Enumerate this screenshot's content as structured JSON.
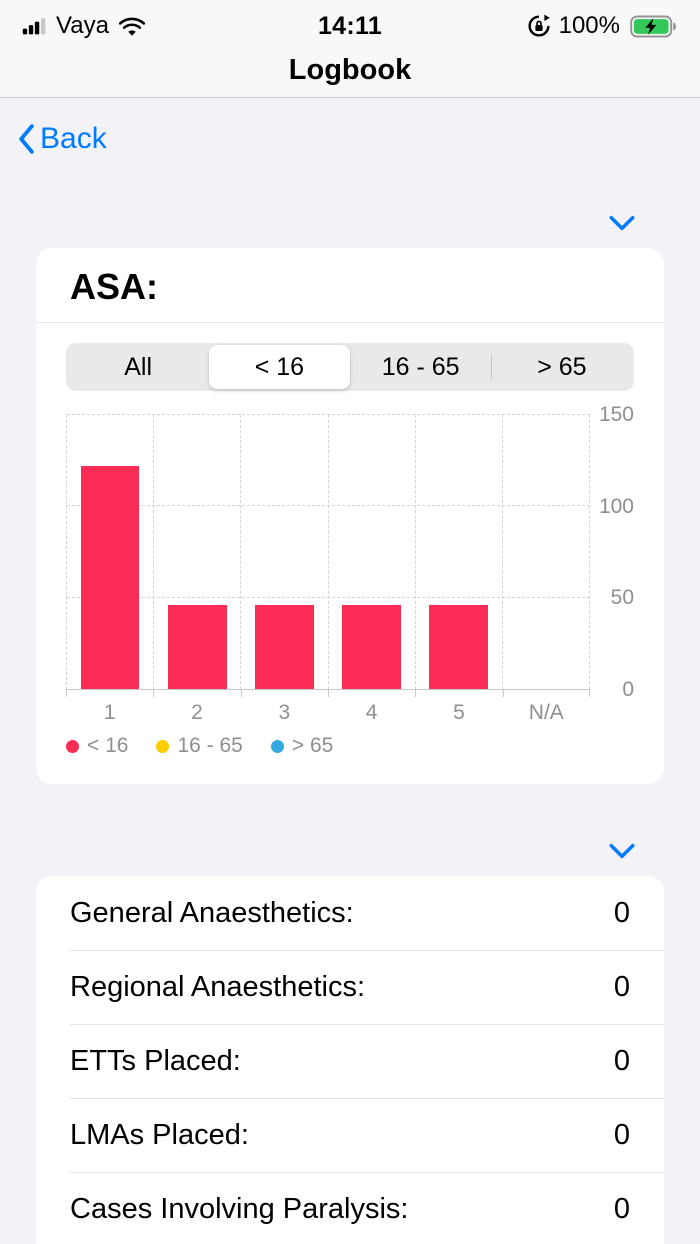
{
  "status_bar": {
    "carrier": "Vaya",
    "time": "14:11",
    "battery_percent": "100%"
  },
  "nav": {
    "title": "Logbook",
    "back_label": "Back"
  },
  "asa_card": {
    "title": "ASA:",
    "segments": [
      {
        "label": "All",
        "selected": false
      },
      {
        "label": "< 16",
        "selected": true
      },
      {
        "label": "16 - 65",
        "selected": false
      },
      {
        "label": "> 65",
        "selected": false
      }
    ]
  },
  "chart_data": {
    "type": "bar",
    "categories": [
      "1",
      "2",
      "3",
      "4",
      "5",
      "N/A"
    ],
    "series": [
      {
        "name": "< 16",
        "color": "#fb2c55",
        "values": [
          122,
          46,
          46,
          46,
          46,
          0
        ]
      }
    ],
    "legend": [
      {
        "label": "< 16",
        "color": "#fb2c55"
      },
      {
        "label": "16 - 65",
        "color": "#ffcc00"
      },
      {
        "label": "> 65",
        "color": "#35a8e0"
      }
    ],
    "xlabel": "",
    "ylabel": "",
    "y_ticks": [
      0,
      50,
      100,
      150
    ],
    "ylim": [
      0,
      150
    ],
    "grid": true,
    "legend_position": "bottom-left"
  },
  "stats_card": {
    "rows": [
      {
        "label": "General Anaesthetics:",
        "value": "0"
      },
      {
        "label": "Regional Anaesthetics:",
        "value": "0"
      },
      {
        "label": "ETTs Placed:",
        "value": "0"
      },
      {
        "label": "LMAs Placed:",
        "value": "0"
      },
      {
        "label": "Cases Involving Paralysis:",
        "value": "0"
      }
    ]
  },
  "colors": {
    "accent_blue": "#007aff",
    "bar_red": "#fb2c55",
    "legend_yellow": "#ffcc00",
    "legend_blue": "#35a8e0",
    "battery_green": "#34c759"
  }
}
